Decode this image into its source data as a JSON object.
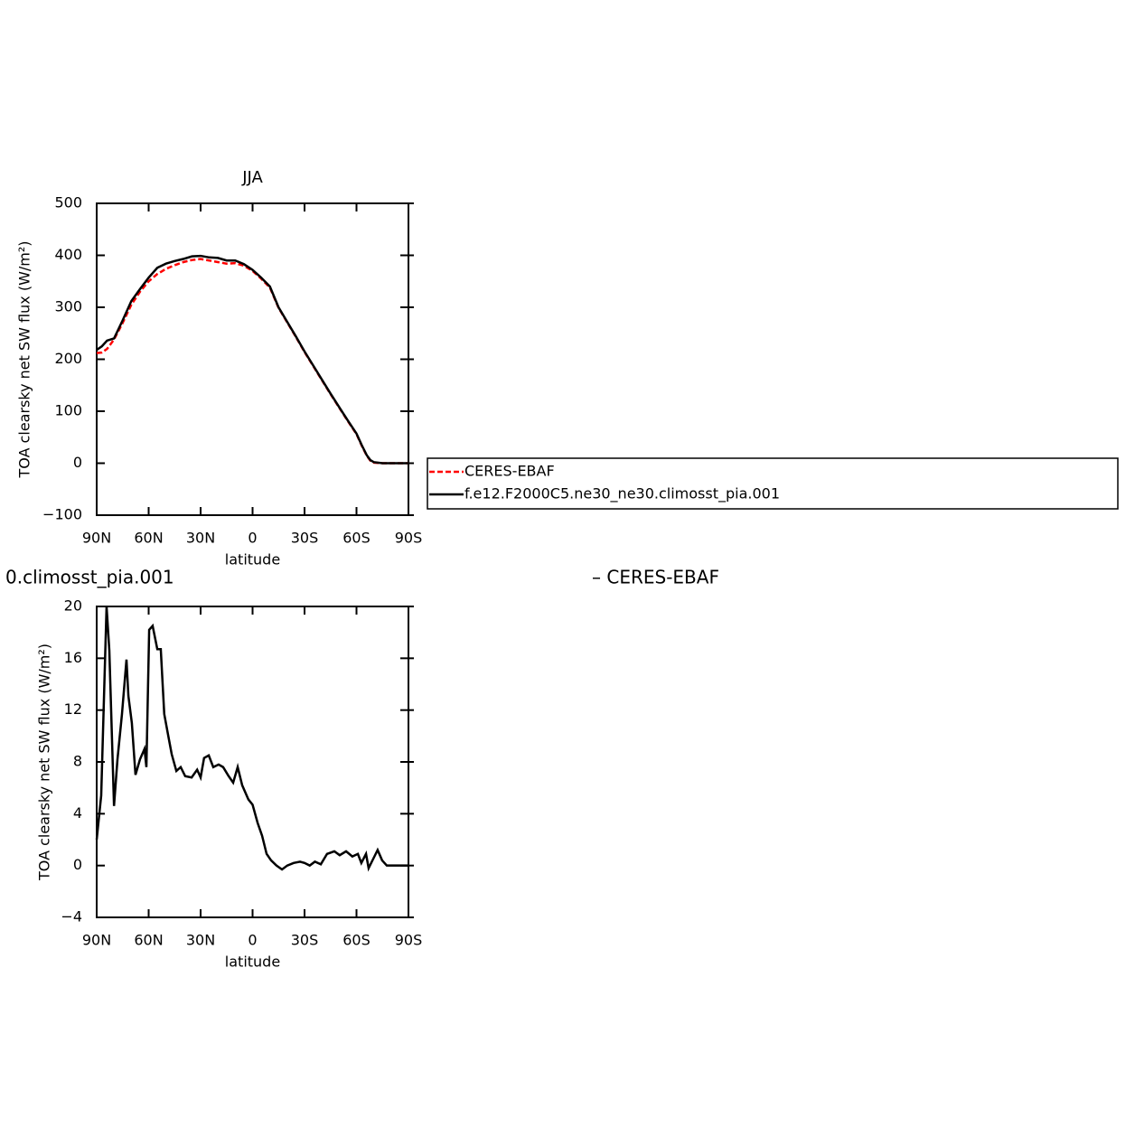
{
  "chart_data": [
    {
      "type": "line",
      "title": "JJA",
      "x_label": "latitude",
      "y_label": "TOA clearsky net SW flux (W/m²)",
      "legend": "outside right",
      "x": [
        90,
        87,
        84,
        80,
        75,
        70,
        65,
        60,
        55,
        50,
        45,
        40,
        35,
        30,
        25,
        20,
        15,
        10,
        5,
        0,
        -5,
        -10,
        -15,
        -20,
        -25,
        -30,
        -35,
        -40,
        -45,
        -50,
        -55,
        -60,
        -63,
        -66,
        -68,
        -70,
        -75,
        -80,
        -90
      ],
      "series": [
        {
          "name": "CERES-EBAF",
          "color": "#ff0000",
          "dash": true,
          "values": [
            212,
            213,
            220,
            238,
            270,
            305,
            330,
            350,
            364,
            374,
            381,
            387,
            391,
            393,
            390,
            387,
            384,
            385,
            380,
            370,
            355,
            338,
            299,
            271,
            243,
            214,
            187,
            160,
            133,
            107,
            81,
            56,
            34,
            14,
            5,
            1,
            0,
            0,
            0
          ]
        },
        {
          "name": "f.e12.F2000C5.ne30_ne30.climosst_pia.001",
          "color": "#000000",
          "dash": false,
          "values": [
            218,
            225,
            236,
            240,
            275,
            312,
            335,
            357,
            376,
            384,
            389,
            393,
            398,
            399,
            396,
            395,
            390,
            390,
            383,
            372,
            357,
            340,
            300,
            272,
            244,
            215,
            188,
            161,
            134,
            108,
            82,
            57,
            35,
            15,
            6,
            2,
            0,
            0,
            0
          ]
        }
      ],
      "xlim": [
        90,
        -90
      ],
      "xticks": [
        {
          "value": 90,
          "label": "90N"
        },
        {
          "value": 60,
          "label": "60N"
        },
        {
          "value": 30,
          "label": "30N"
        },
        0,
        {
          "value": -30,
          "label": "30S"
        },
        {
          "value": -60,
          "label": "60S"
        },
        {
          "value": -90,
          "label": "90S"
        }
      ],
      "ylim": [
        -100,
        500
      ],
      "yticks": [
        {
          "value": -100,
          "label": "−100"
        },
        0,
        100,
        200,
        300,
        400,
        500
      ]
    },
    {
      "type": "line",
      "left_title": "0.climosst_pia.001",
      "right_title": "– CERES-EBAF",
      "x_label": "latitude",
      "y_label": "TOA clearsky net SW flux (W/m²)",
      "x": [
        90,
        87.4,
        84.3,
        82.7,
        80,
        78,
        75.4,
        72.8,
        71.7,
        69.7,
        67.6,
        65,
        62.4,
        61.3,
        59.7,
        57.7,
        55,
        53,
        51,
        48.8,
        46.7,
        44,
        41.5,
        38.9,
        35.2,
        32,
        30,
        28,
        25.3,
        22.7,
        19.6,
        17,
        13.8,
        11.2,
        8.6,
        6,
        2.4,
        0,
        -2.9,
        -5.5,
        -8.1,
        -10.7,
        -13.8,
        -17,
        -20,
        -23.7,
        -27.4,
        -30,
        -33,
        -36,
        -39.4,
        -43,
        -47.2,
        -50.3,
        -54,
        -57.6,
        -60.8,
        -62.8,
        -65.5,
        -67,
        -69.6,
        -72.2,
        -74.8,
        -77.5,
        -90
      ],
      "series": [
        {
          "name": "f.e12.F2000C5.ne30_ne30.climosst_pia.001",
          "color": "#000000",
          "dash": false,
          "values": [
            2,
            5.4,
            20,
            16.6,
            4.6,
            8.2,
            11.7,
            15.9,
            13.1,
            11,
            7,
            8.2,
            9,
            7.6,
            18.2,
            18.5,
            16.7,
            16.7,
            11.7,
            10.1,
            8.6,
            7.3,
            7.6,
            6.9,
            6.8,
            7.4,
            6.8,
            8.3,
            8.5,
            7.6,
            7.8,
            7.6,
            6.9,
            6.4,
            7.6,
            6.2,
            5.1,
            4.7,
            3.3,
            2.3,
            0.9,
            0.4,
            0,
            -0.3,
            0,
            0.2,
            0.3,
            0.2,
            0,
            0.3,
            0.1,
            0.9,
            1.1,
            0.8,
            1.1,
            0.7,
            0.9,
            0.2,
            0.9,
            -0.2,
            0.5,
            1.2,
            0.4,
            0,
            0
          ]
        }
      ],
      "xlim": [
        90,
        -90
      ],
      "xticks": [
        {
          "value": 90,
          "label": "90N"
        },
        {
          "value": 60,
          "label": "60N"
        },
        {
          "value": 30,
          "label": "30N"
        },
        0,
        {
          "value": -30,
          "label": "30S"
        },
        {
          "value": -60,
          "label": "60S"
        },
        {
          "value": -90,
          "label": "90S"
        }
      ],
      "ylim": [
        -4,
        20
      ],
      "yticks": [
        {
          "value": -4,
          "label": "−4"
        },
        0,
        4,
        8,
        12,
        16,
        20
      ]
    }
  ]
}
